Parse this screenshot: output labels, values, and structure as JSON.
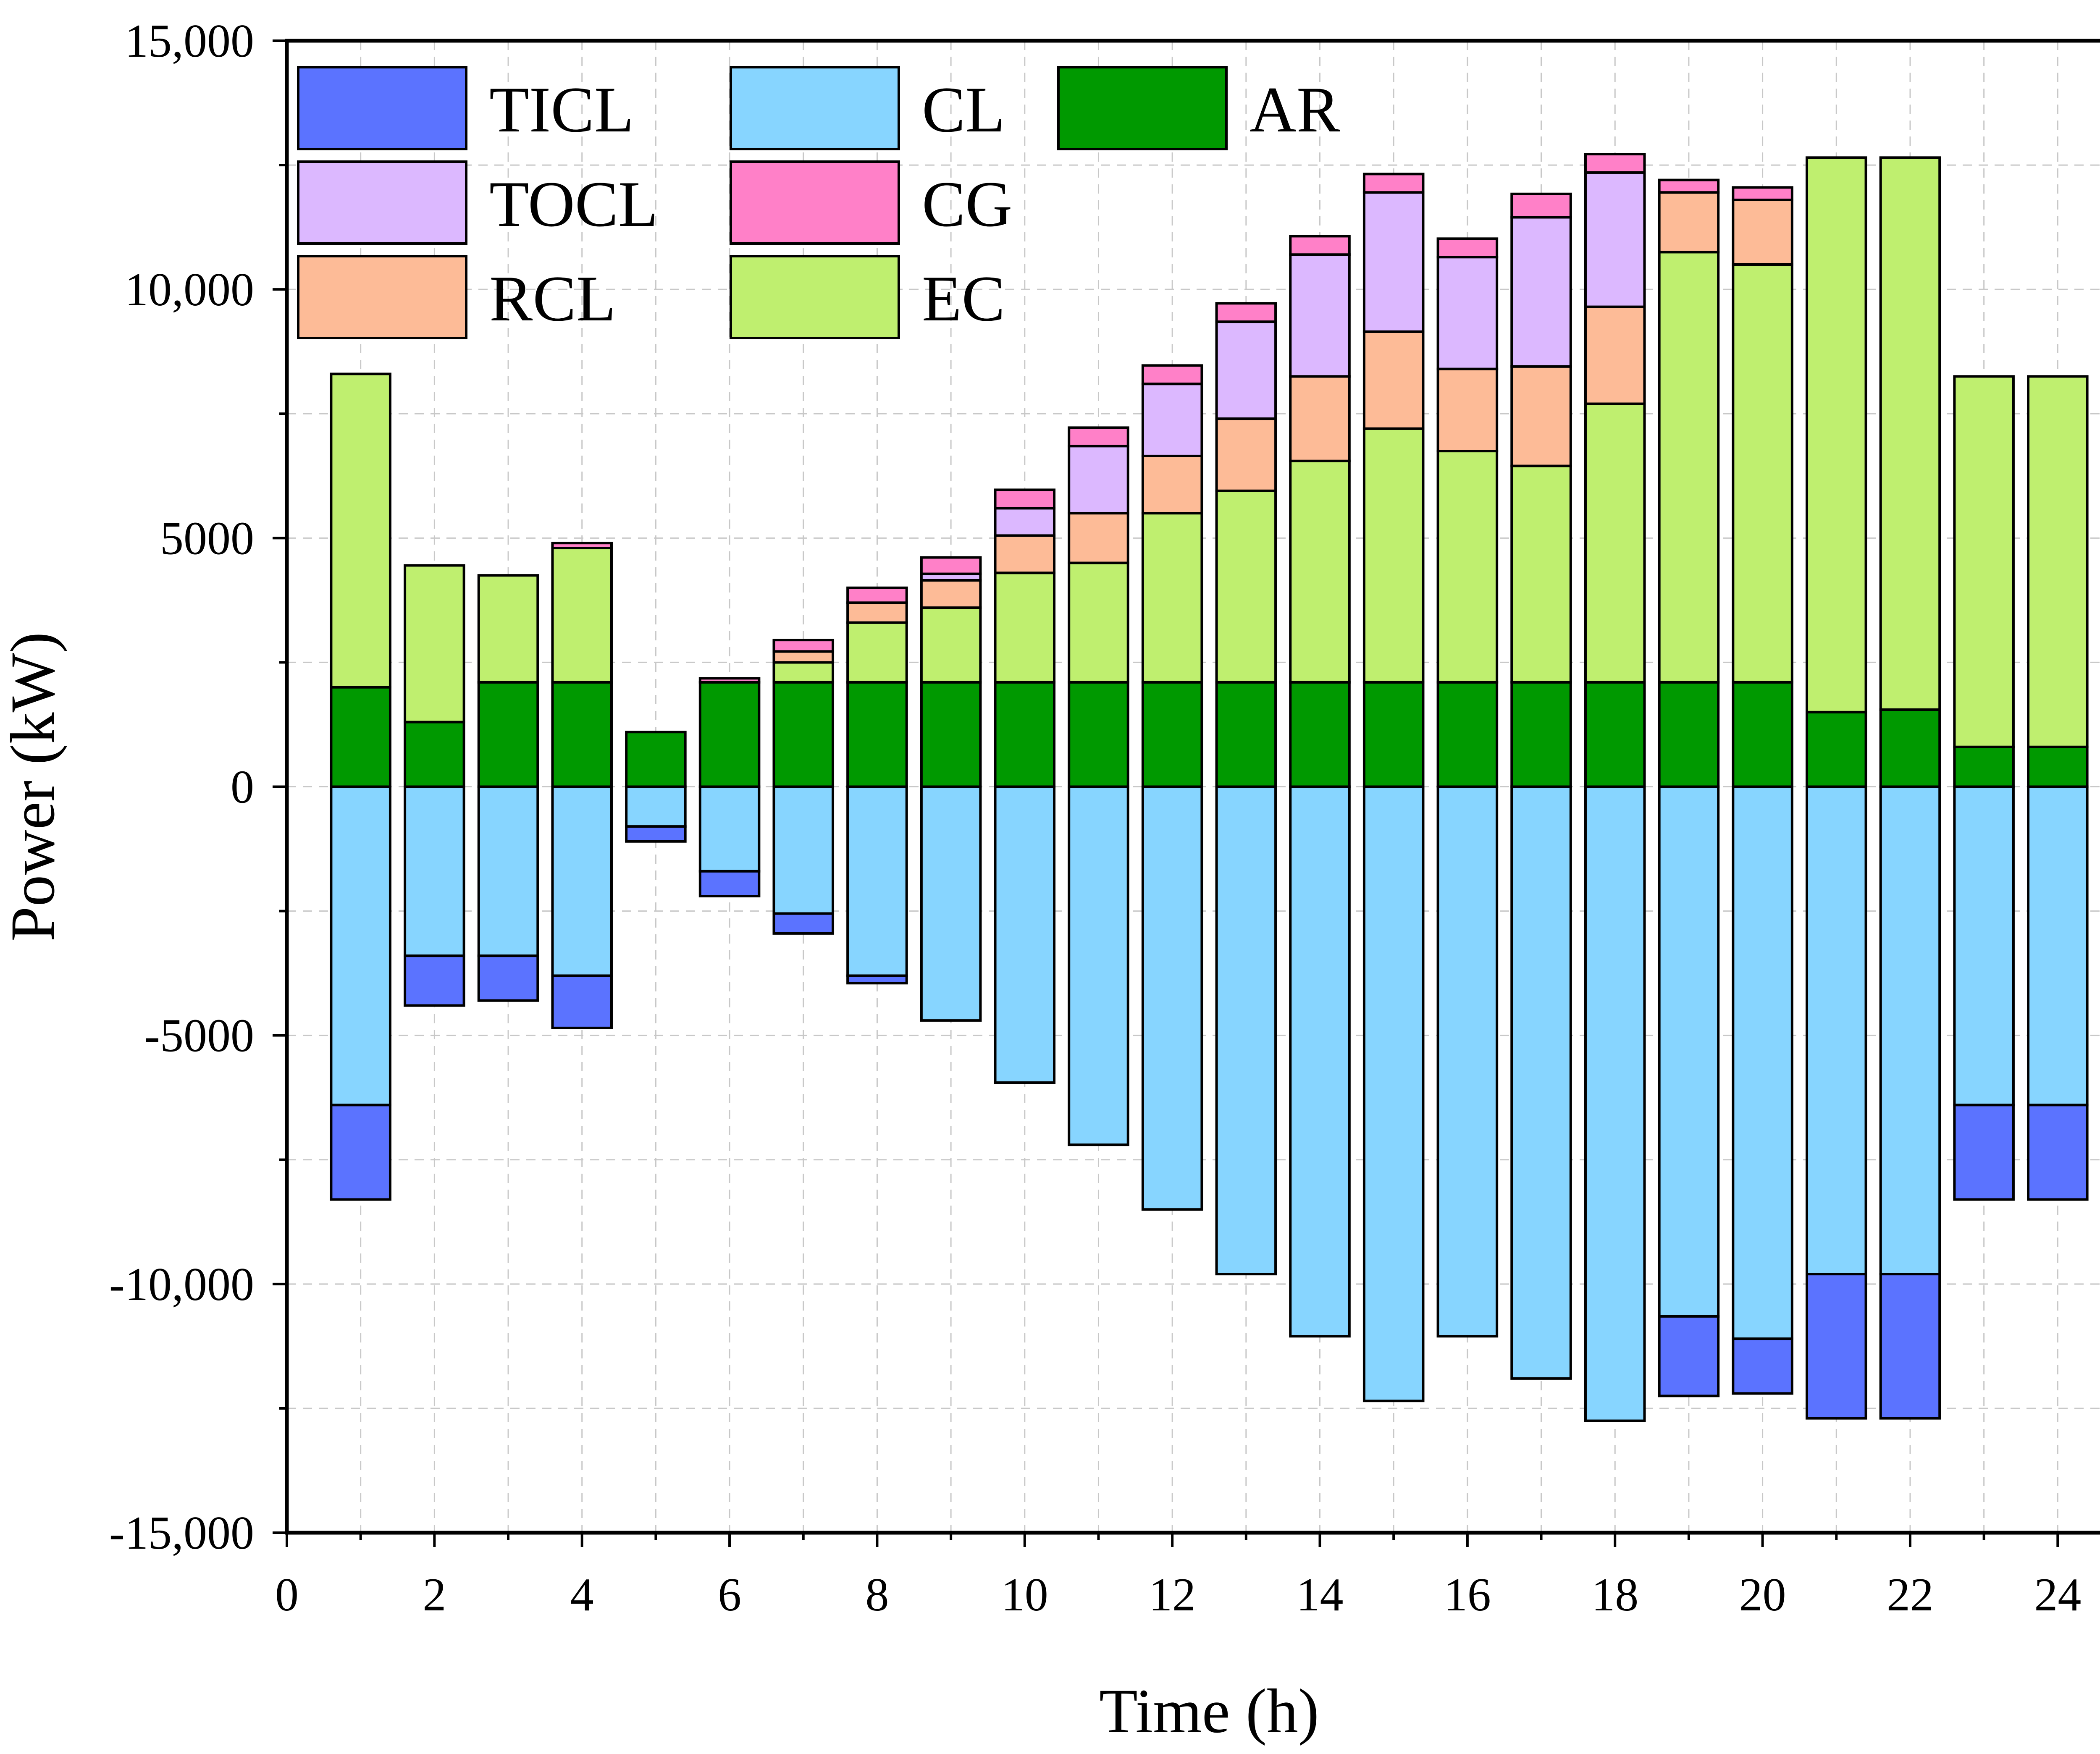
{
  "chart_data": {
    "type": "bar",
    "stacked": true,
    "xlabel": "Time (h)",
    "ylabel": "Power (kW)",
    "xlim": [
      0,
      25
    ],
    "ylim": [
      -15000,
      15000
    ],
    "x_ticks": [
      0,
      2,
      4,
      6,
      8,
      10,
      12,
      14,
      16,
      18,
      20,
      22,
      24
    ],
    "x_tick_labels": [
      "0",
      "2",
      "4",
      "6",
      "8",
      "10",
      "12",
      "14",
      "16",
      "18",
      "20",
      "22",
      "24"
    ],
    "y_ticks": [
      -15000,
      -10000,
      -5000,
      0,
      5000,
      10000,
      15000
    ],
    "y_tick_labels": [
      "-15,000",
      "-10,000",
      "-5000",
      "0",
      "5000",
      "10,000",
      "15,000"
    ],
    "grid": true,
    "legend_position": "top-left",
    "x": [
      1,
      2,
      3,
      4,
      5,
      6,
      7,
      8,
      9,
      10,
      11,
      12,
      13,
      14,
      15,
      16,
      17,
      18,
      19,
      20,
      21,
      22,
      23,
      24
    ],
    "positive_stack_order": [
      "AR",
      "EC",
      "RCL",
      "TOCL",
      "CG"
    ],
    "negative_stack_order": [
      "CL",
      "TICL"
    ],
    "series": [
      {
        "name": "TICL",
        "color": "#5b73ff",
        "sign": "negative",
        "values": [
          -1900,
          -1000,
          -900,
          -1050,
          -300,
          -500,
          -400,
          -150,
          0,
          0,
          0,
          0,
          0,
          0,
          0,
          0,
          0,
          0,
          -1600,
          -1100,
          -2900,
          -2900,
          -1900,
          -1900
        ]
      },
      {
        "name": "CL",
        "color": "#87d5ff",
        "sign": "negative",
        "values": [
          -6400,
          -3400,
          -3400,
          -3800,
          -800,
          -1700,
          -2550,
          -3800,
          -4700,
          -5950,
          -7200,
          -8500,
          -9800,
          -11050,
          -12350,
          -11050,
          -11900,
          -12750,
          -10650,
          -11100,
          -9800,
          -9800,
          -6400,
          -6400
        ]
      },
      {
        "name": "AR",
        "color": "#009900",
        "sign": "positive",
        "values": [
          2000,
          1300,
          2100,
          2100,
          1100,
          2100,
          2100,
          2100,
          2100,
          2100,
          2100,
          2100,
          2100,
          2100,
          2100,
          2100,
          2100,
          2100,
          2100,
          2100,
          1500,
          1550,
          800,
          800
        ]
      },
      {
        "name": "TOCL",
        "color": "#dcb8ff",
        "sign": "positive",
        "values": [
          0,
          0,
          0,
          0,
          0,
          0,
          0,
          0,
          130,
          550,
          1350,
          1450,
          1950,
          2450,
          2800,
          2250,
          3000,
          2700,
          0,
          0,
          0,
          0,
          0,
          0
        ]
      },
      {
        "name": "CG",
        "color": "#ff80c8",
        "sign": "positive",
        "values": [
          0,
          0,
          0,
          100,
          0,
          80,
          230,
          300,
          330,
          370,
          370,
          370,
          370,
          370,
          370,
          370,
          470,
          370,
          250,
          250,
          0,
          0,
          0,
          0
        ]
      },
      {
        "name": "RCL",
        "color": "#fdbb97",
        "sign": "positive",
        "values": [
          0,
          0,
          0,
          0,
          0,
          0,
          220,
          400,
          550,
          750,
          1000,
          1150,
          1450,
          1700,
          1950,
          1650,
          2000,
          1950,
          1200,
          1300,
          0,
          0,
          0,
          0
        ]
      },
      {
        "name": "EC",
        "color": "#bfef6f",
        "sign": "positive",
        "values": [
          6300,
          3150,
          2150,
          2700,
          0,
          0,
          400,
          1200,
          1500,
          2200,
          2400,
          3400,
          3850,
          4450,
          5100,
          4650,
          4350,
          5600,
          8650,
          8400,
          11150,
          11100,
          7450,
          7450
        ]
      }
    ]
  }
}
